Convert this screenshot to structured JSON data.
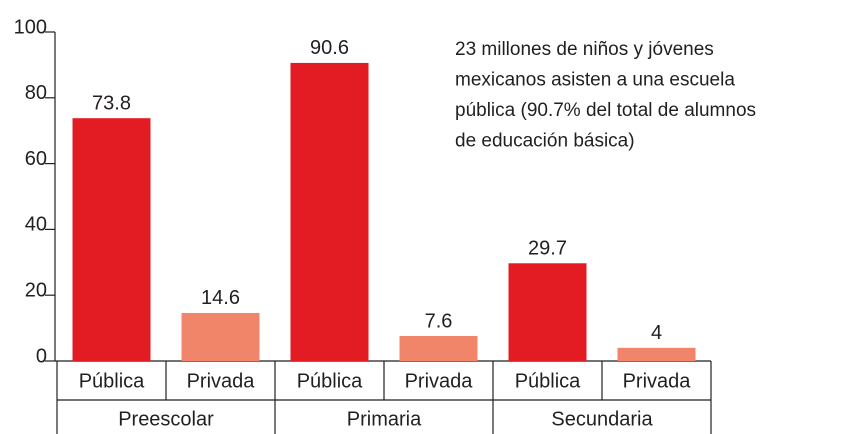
{
  "chart_data": {
    "type": "bar",
    "categories": [
      "Pública",
      "Privada",
      "Pública",
      "Privada",
      "Pública",
      "Privada"
    ],
    "groups": [
      "Preescolar",
      "Primaria",
      "Secundaria"
    ],
    "values": [
      73.8,
      14.6,
      90.6,
      7.6,
      29.7,
      4
    ],
    "colors": [
      "#e31b23",
      "#f0856a",
      "#e31b23",
      "#f0856a",
      "#e31b23",
      "#f0856a"
    ],
    "ylim": [
      0,
      100
    ],
    "yticks": [
      0,
      20,
      40,
      60,
      80,
      100
    ],
    "annotation": [
      "23 millones de niños y jóvenes",
      "mexicanos asisten a una escuela",
      "pública (90.7% del total de alumnos",
      "de educación básica)"
    ]
  }
}
